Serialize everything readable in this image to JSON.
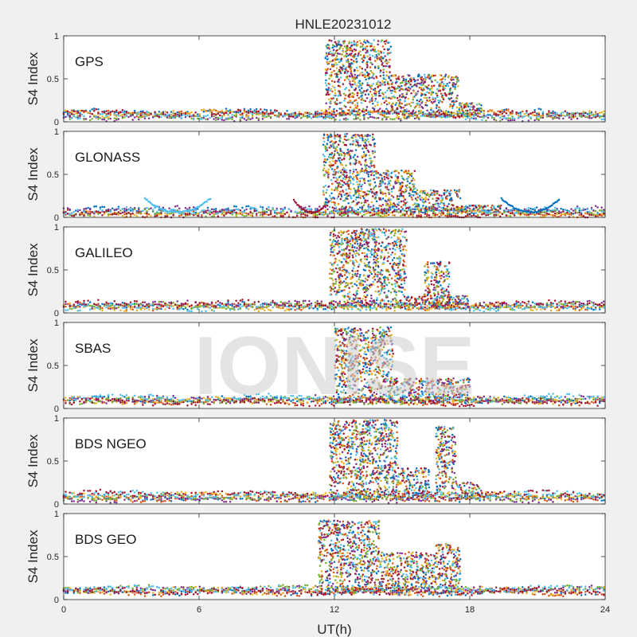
{
  "title": "HNLE20231012",
  "watermark": "IONISE",
  "chart_data": {
    "type": "scatter",
    "title": "HNLE20231012",
    "xlabel": "UT(h)",
    "ylabel": "S4 Index",
    "xlim": [
      0,
      24
    ],
    "ylim": [
      0,
      1
    ],
    "xticks": [
      "0",
      "6",
      "12",
      "18",
      "24"
    ],
    "yticks": [
      "0",
      "0.5",
      "1"
    ],
    "grid": false,
    "series_colors": [
      "#0072BD",
      "#D95319",
      "#EDB120",
      "#7E2F8E",
      "#77AC30",
      "#4DBEEE",
      "#A2142F"
    ],
    "panels": [
      {
        "label": "GPS",
        "quiet_s4": 0.08,
        "bursts": [
          {
            "start": 11.6,
            "end": 14.5,
            "peak": 0.95
          },
          {
            "start": 14.5,
            "end": 17.5,
            "peak": 0.55
          },
          {
            "start": 17.5,
            "end": 18.6,
            "peak": 0.22
          }
        ]
      },
      {
        "label": "GLONASS",
        "quiet_s4": 0.06,
        "bursts": [
          {
            "start": 11.5,
            "end": 13.8,
            "peak": 0.97
          },
          {
            "start": 13.8,
            "end": 15.6,
            "peak": 0.55
          },
          {
            "start": 15.6,
            "end": 17.6,
            "peak": 0.32
          },
          {
            "start": 17.6,
            "end": 19.4,
            "peak": 0.14
          }
        ],
        "arcs": [
          {
            "start": 3.6,
            "end": 6.5,
            "top": 0.22,
            "bottom": 0.06
          },
          {
            "start": 10.2,
            "end": 11.8,
            "top": 0.2,
            "bottom": 0.06
          },
          {
            "start": 19.4,
            "end": 22.0,
            "top": 0.22,
            "bottom": 0.06
          }
        ]
      },
      {
        "label": "GALILEO",
        "quiet_s4": 0.09,
        "bursts": [
          {
            "start": 11.8,
            "end": 15.2,
            "peak": 0.98
          },
          {
            "start": 16.0,
            "end": 17.1,
            "peak": 0.6
          },
          {
            "start": 15.2,
            "end": 18.0,
            "peak": 0.2
          }
        ]
      },
      {
        "label": "SBAS",
        "quiet_s4": 0.1,
        "bursts": [
          {
            "start": 12.0,
            "end": 14.6,
            "peak": 0.95
          },
          {
            "start": 14.6,
            "end": 18.0,
            "peak": 0.35
          }
        ]
      },
      {
        "label": "BDS NGEO",
        "quiet_s4": 0.09,
        "bursts": [
          {
            "start": 11.8,
            "end": 14.8,
            "peak": 0.98
          },
          {
            "start": 14.8,
            "end": 16.2,
            "peak": 0.42
          },
          {
            "start": 16.5,
            "end": 17.4,
            "peak": 0.9
          },
          {
            "start": 17.4,
            "end": 18.5,
            "peak": 0.25
          }
        ]
      },
      {
        "label": "BDS GEO",
        "quiet_s4": 0.1,
        "bursts": [
          {
            "start": 11.3,
            "end": 14.0,
            "peak": 0.92
          },
          {
            "start": 14.0,
            "end": 16.5,
            "peak": 0.55
          },
          {
            "start": 16.5,
            "end": 17.6,
            "peak": 0.65
          }
        ]
      }
    ]
  }
}
